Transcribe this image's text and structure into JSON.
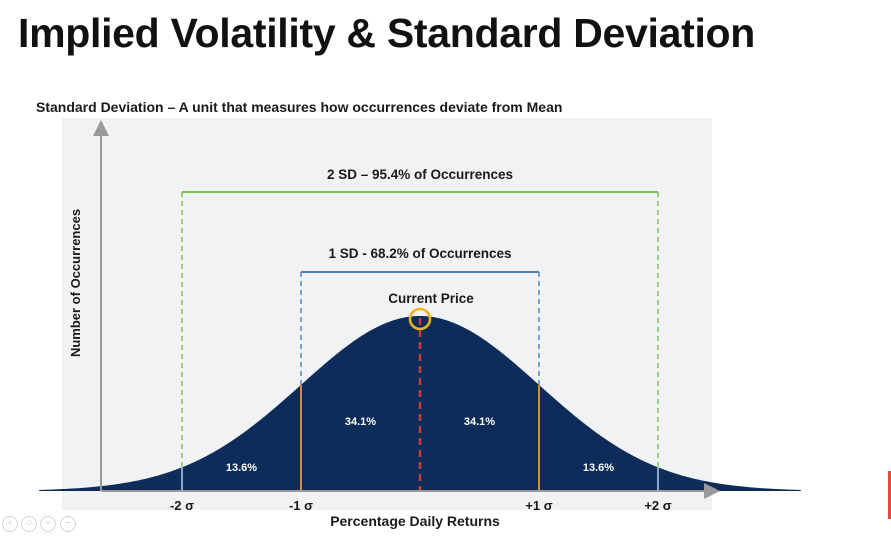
{
  "page": {
    "title": "Implied Volatility & Standard Deviation",
    "subtitle": "Standard Deviation – A unit that measures how occurrences deviate from Mean"
  },
  "chart_data": {
    "type": "area",
    "distribution": "normal",
    "mean": 0,
    "sd": 1,
    "xlim": [
      -3.2,
      3.2
    ],
    "xlabel": "Percentage Daily Returns",
    "ylabel": "Number of Occurrences",
    "grid": false,
    "colors": {
      "fill": "#0d2c5a",
      "sd1_bracket": "#4a7cc7",
      "sd2_bracket": "#7cbd4e",
      "sigma1_line": "#d98a35",
      "sigma2_line": "#a9c8ea",
      "mean_line": "#cf3a3a",
      "current_price_marker": "#f2b321"
    },
    "ticks": [
      {
        "x": -2,
        "label": "-2 σ"
      },
      {
        "x": -1,
        "label": "-1 σ"
      },
      {
        "x": 1,
        "label": "+1 σ"
      },
      {
        "x": 2,
        "label": "+2 σ"
      }
    ],
    "regions": [
      {
        "from": -2,
        "to": -1,
        "label": "13.6%"
      },
      {
        "from": -1,
        "to": 0,
        "label": "34.1%"
      },
      {
        "from": 0,
        "to": 1,
        "label": "34.1%"
      },
      {
        "from": 1,
        "to": 2,
        "label": "13.6%"
      }
    ],
    "brackets": [
      {
        "from": -2,
        "to": 2,
        "label": "2 SD – 95.4% of Occurrences"
      },
      {
        "from": -1,
        "to": 1,
        "label": "1 SD - 68.2% of Occurrences"
      }
    ],
    "annotations": [
      {
        "x": 0,
        "label": "Current Price"
      }
    ]
  }
}
